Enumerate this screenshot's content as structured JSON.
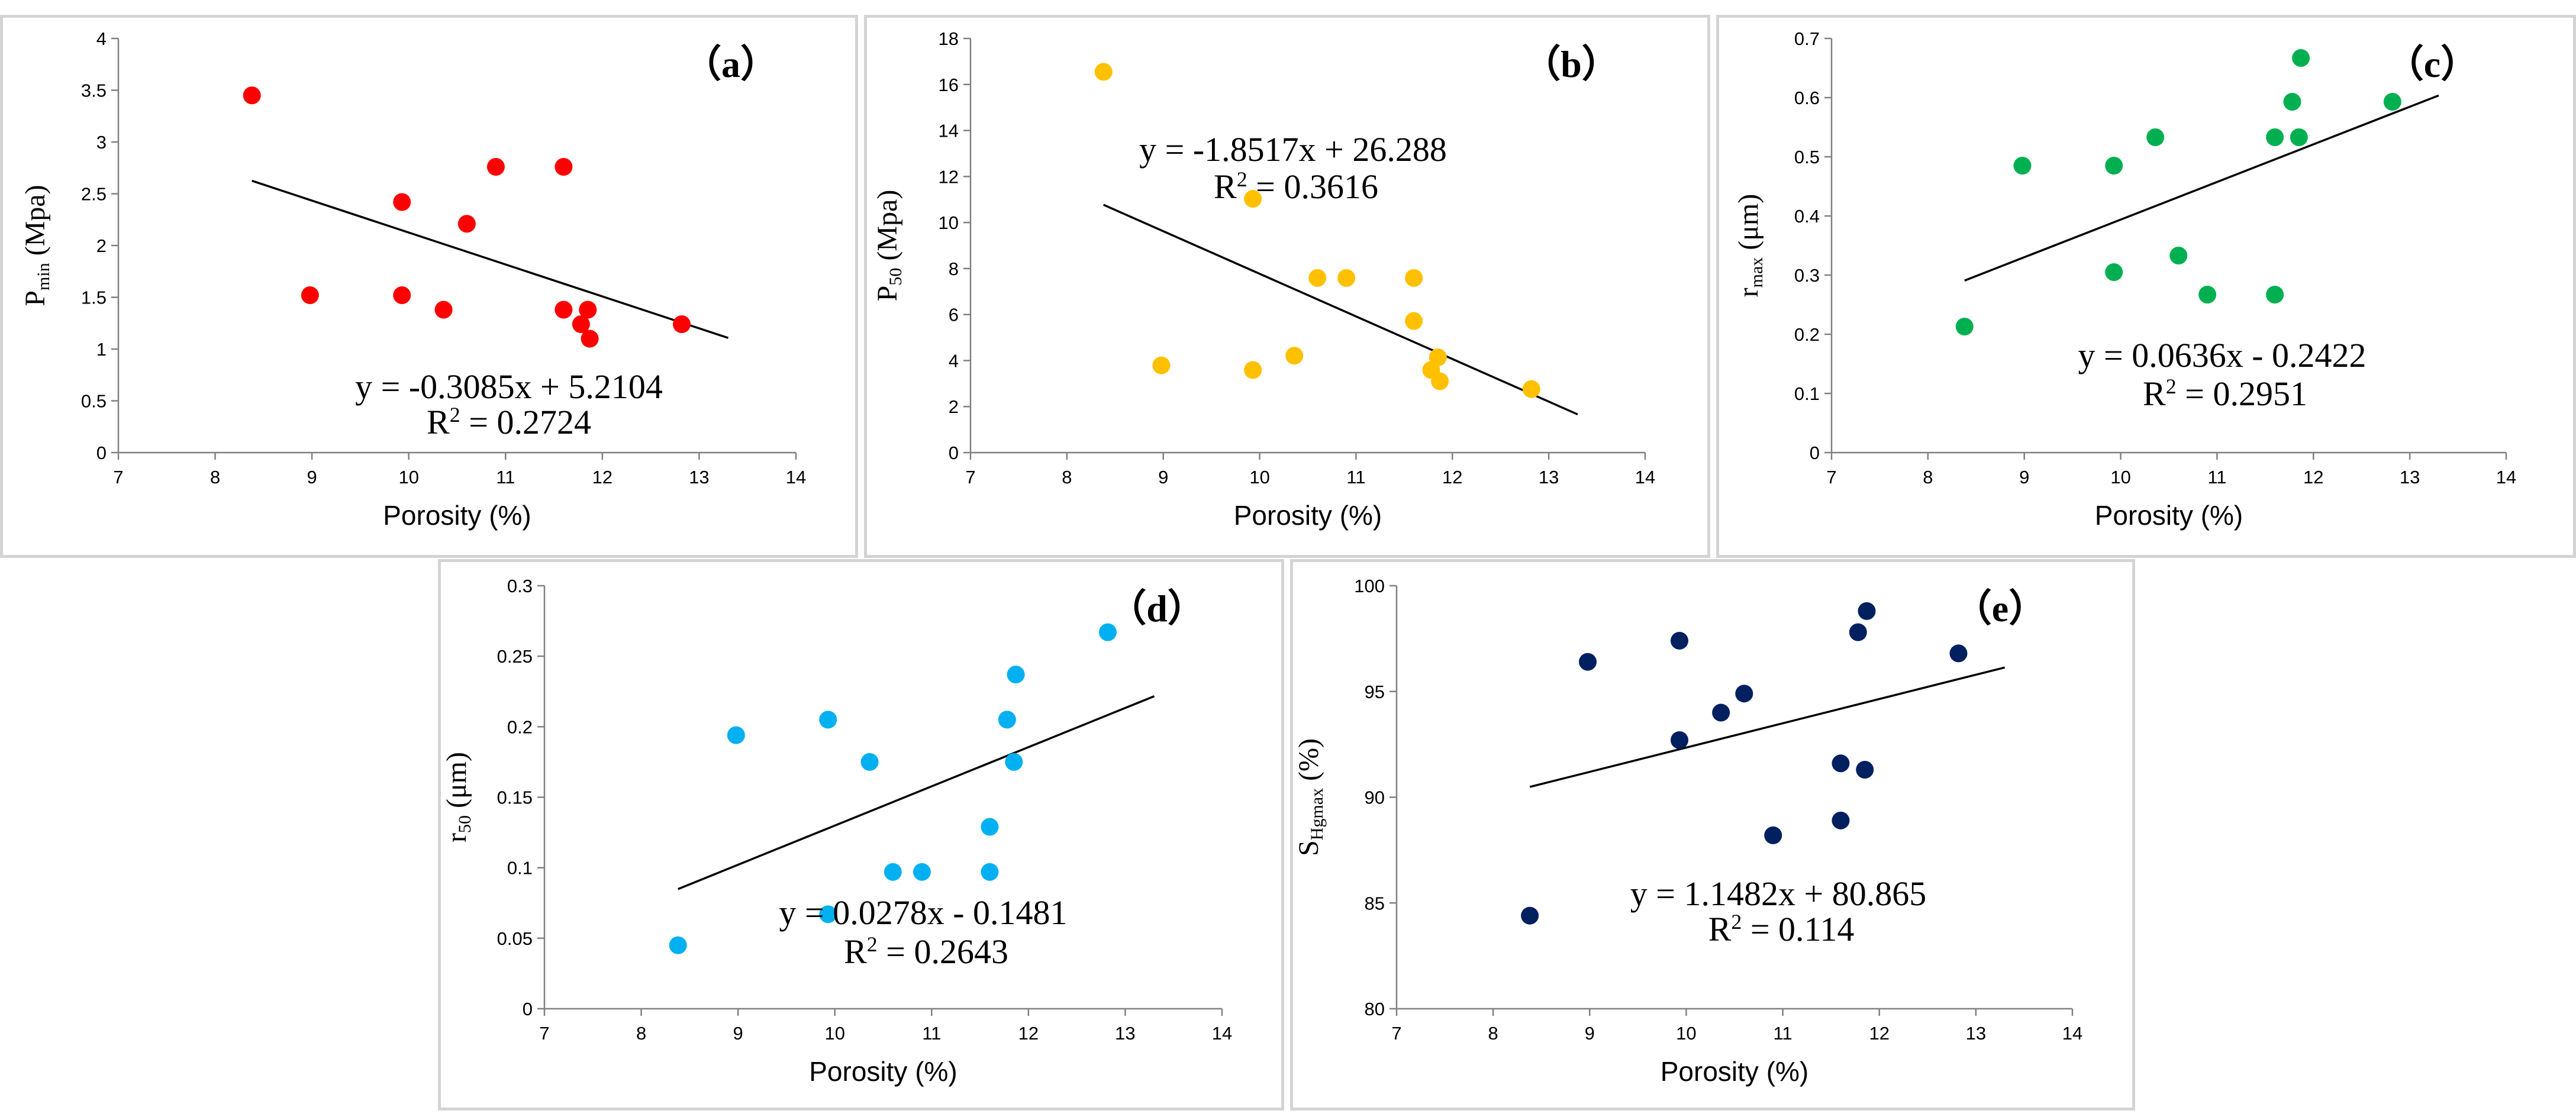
{
  "chart_data": [
    {
      "id": "a",
      "type": "scatter",
      "panel_label": "（a）",
      "xlabel": "Porosity (%)",
      "ylabel_main": "P",
      "ylabel_sub": "min",
      "ylabel_tail": " (Mpa)",
      "xlim": [
        7,
        14
      ],
      "ylim": [
        0,
        4
      ],
      "xticks": [
        7,
        8,
        9,
        10,
        11,
        12,
        13,
        14
      ],
      "yticks": [
        0,
        0.5,
        1,
        1.5,
        2,
        2.5,
        3,
        3.5,
        4
      ],
      "ytick_labels": [
        "0",
        "0.5",
        "1",
        "1.5",
        "2",
        "2.5",
        "3",
        "3.5",
        "4"
      ],
      "color": "#ff0000",
      "points": [
        [
          8.38,
          3.45
        ],
        [
          8.98,
          1.52
        ],
        [
          9.93,
          2.42
        ],
        [
          9.93,
          1.52
        ],
        [
          10.36,
          1.38
        ],
        [
          10.6,
          2.21
        ],
        [
          10.9,
          2.76
        ],
        [
          11.6,
          2.76
        ],
        [
          11.6,
          1.38
        ],
        [
          11.78,
          1.24
        ],
        [
          11.85,
          1.38
        ],
        [
          11.87,
          1.1
        ],
        [
          12.82,
          1.24
        ]
      ],
      "trend": {
        "slope": -0.3085,
        "intercept": 5.2104,
        "x_range": [
          8.38,
          13.3
        ]
      },
      "equation": "y = -0.3085x + 5.2104",
      "r2_prefix": "R",
      "r2_exp": "2",
      "r2_value": " = 0.2724"
    },
    {
      "id": "b",
      "type": "scatter",
      "panel_label": "（b）",
      "xlabel": "Porosity (%)",
      "ylabel_main": "P",
      "ylabel_sub": "50",
      "ylabel_tail": " (Mpa)",
      "xlim": [
        7,
        14
      ],
      "ylim": [
        0,
        18
      ],
      "xticks": [
        7,
        8,
        9,
        10,
        11,
        12,
        13,
        14
      ],
      "yticks": [
        0,
        2,
        4,
        6,
        8,
        10,
        12,
        14,
        16,
        18
      ],
      "ytick_labels": [
        "0",
        "2",
        "4",
        "6",
        "8",
        "10",
        "12",
        "14",
        "16",
        "18"
      ],
      "color": "#ffc000",
      "points": [
        [
          8.38,
          16.55
        ],
        [
          8.98,
          3.79
        ],
        [
          9.93,
          11.03
        ],
        [
          9.93,
          3.59
        ],
        [
          10.36,
          4.21
        ],
        [
          10.6,
          7.59
        ],
        [
          10.9,
          7.59
        ],
        [
          11.6,
          7.59
        ],
        [
          11.6,
          5.72
        ],
        [
          11.78,
          3.59
        ],
        [
          11.85,
          4.14
        ],
        [
          11.87,
          3.1
        ],
        [
          12.82,
          2.76
        ]
      ],
      "trend": {
        "slope": -1.8517,
        "intercept": 26.288,
        "x_range": [
          8.38,
          13.3
        ]
      },
      "equation": "y = -1.8517x + 26.288",
      "r2_prefix": "R",
      "r2_exp": "2",
      "r2_value": " = 0.3616"
    },
    {
      "id": "c",
      "type": "scatter",
      "panel_label": "（c）",
      "xlabel": "Porosity (%)",
      "ylabel_main": "r",
      "ylabel_sub": "max",
      "ylabel_tail": " (μm)",
      "xlim": [
        7,
        14
      ],
      "ylim": [
        0,
        0.7
      ],
      "xticks": [
        7,
        8,
        9,
        10,
        11,
        12,
        13,
        14
      ],
      "yticks": [
        0,
        0.1,
        0.2,
        0.3,
        0.4,
        0.5,
        0.6,
        0.7
      ],
      "ytick_labels": [
        "0",
        "0.1",
        "0.2",
        "0.3",
        "0.4",
        "0.5",
        "0.6",
        "0.7"
      ],
      "color": "#00b050",
      "points": [
        [
          8.38,
          0.213
        ],
        [
          8.98,
          0.485
        ],
        [
          9.93,
          0.485
        ],
        [
          9.93,
          0.305
        ],
        [
          10.36,
          0.533
        ],
        [
          10.6,
          0.333
        ],
        [
          10.9,
          0.267
        ],
        [
          11.6,
          0.533
        ],
        [
          11.6,
          0.267
        ],
        [
          11.78,
          0.593
        ],
        [
          11.85,
          0.533
        ],
        [
          11.87,
          0.667
        ],
        [
          12.82,
          0.593
        ]
      ],
      "trend": {
        "slope": 0.0636,
        "intercept": -0.2422,
        "x_range": [
          8.38,
          13.3
        ]
      },
      "equation": "y = 0.0636x - 0.2422",
      "r2_prefix": "R",
      "r2_exp": "2",
      "r2_value": " = 0.2951"
    },
    {
      "id": "d",
      "type": "scatter",
      "panel_label": "（d）",
      "xlabel": "Porosity (%)",
      "ylabel_main": "r",
      "ylabel_sub": "50",
      "ylabel_tail": " (μm)",
      "xlim": [
        7,
        14
      ],
      "ylim": [
        0,
        0.3
      ],
      "xticks": [
        7,
        8,
        9,
        10,
        11,
        12,
        13,
        14
      ],
      "yticks": [
        0,
        0.05,
        0.1,
        0.15,
        0.2,
        0.25,
        0.3
      ],
      "ytick_labels": [
        "0",
        "0.05",
        "0.1",
        "0.15",
        "0.2",
        "0.25",
        "0.3"
      ],
      "color": "#00b0f0",
      "points": [
        [
          8.38,
          0.045
        ],
        [
          8.98,
          0.194
        ],
        [
          9.93,
          0.205
        ],
        [
          9.93,
          0.067
        ],
        [
          10.36,
          0.175
        ],
        [
          10.6,
          0.097
        ],
        [
          10.9,
          0.097
        ],
        [
          11.6,
          0.129
        ],
        [
          11.6,
          0.097
        ],
        [
          11.78,
          0.205
        ],
        [
          11.85,
          0.175
        ],
        [
          11.87,
          0.237
        ],
        [
          12.82,
          0.267
        ]
      ],
      "trend": {
        "slope": 0.0278,
        "intercept": -0.1481,
        "x_range": [
          8.38,
          13.3
        ]
      },
      "equation": "y = 0.0278x - 0.1481",
      "r2_prefix": "R",
      "r2_exp": "2",
      "r2_value": " = 0.2643"
    },
    {
      "id": "e",
      "type": "scatter",
      "panel_label": "（e）",
      "xlabel": "Porosity (%)",
      "ylabel_main": "S",
      "ylabel_sub": "Hgmax",
      "ylabel_tail": " (%)",
      "xlim": [
        7,
        14
      ],
      "ylim": [
        80,
        100
      ],
      "xticks": [
        7,
        8,
        9,
        10,
        11,
        12,
        13,
        14
      ],
      "yticks": [
        80,
        85,
        90,
        95,
        100
      ],
      "ytick_labels": [
        "80",
        "85",
        "90",
        "95",
        "100"
      ],
      "color": "#002060",
      "points": [
        [
          8.38,
          84.4
        ],
        [
          8.98,
          96.4
        ],
        [
          9.93,
          97.4
        ],
        [
          9.93,
          92.7
        ],
        [
          10.36,
          94.0
        ],
        [
          10.6,
          94.9
        ],
        [
          10.9,
          88.2
        ],
        [
          11.6,
          91.6
        ],
        [
          11.6,
          88.9
        ],
        [
          11.78,
          97.8
        ],
        [
          11.85,
          91.3
        ],
        [
          11.87,
          98.8
        ],
        [
          12.82,
          96.8
        ]
      ],
      "trend": {
        "slope": 1.1482,
        "intercept": 80.865,
        "x_range": [
          8.38,
          13.3
        ]
      },
      "equation": "y = 1.1482x + 80.865",
      "r2_prefix": "R",
      "r2_exp": "2",
      "r2_value": " = 0.114"
    }
  ]
}
